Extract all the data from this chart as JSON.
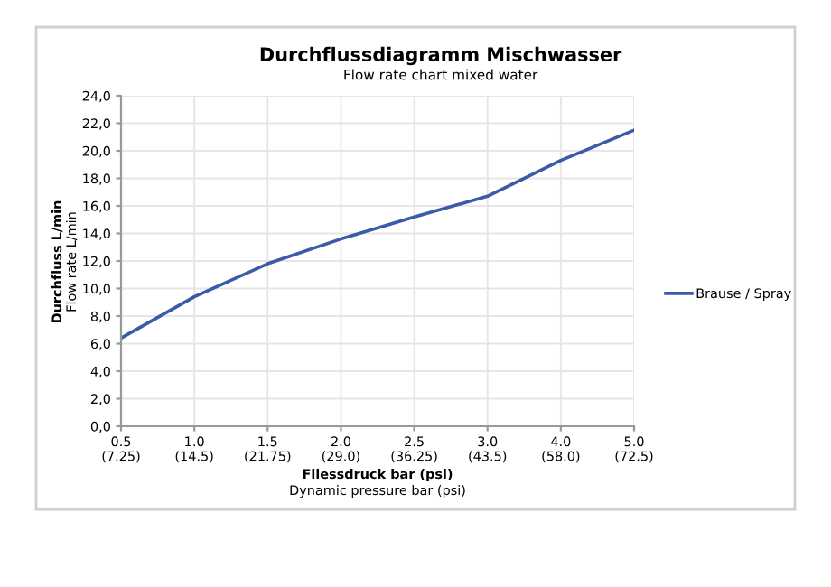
{
  "chart_data": {
    "type": "line",
    "title": "Durchflussdiagramm Mischwasser",
    "subtitle": "Flow rate chart mixed water",
    "xlabel": "Fliessdruck bar (psi)\nDynamic pressure bar (psi)",
    "ylabel": "Durchfluss L/min\nFlow rate L/min",
    "categories": [
      "0.5\n(7.25)",
      "1.0\n(14.5)",
      "1.5\n(21.75)",
      "2.0\n(29.0)",
      "2.5\n(36.25)",
      "3.0\n(43.5)",
      "4.0\n(58.0)",
      "5.0\n(72.5)"
    ],
    "series": [
      {
        "name": "Brause / Spray",
        "color": "#3a5ba8",
        "values": [
          6.4,
          9.4,
          11.8,
          13.6,
          15.2,
          16.7,
          19.3,
          21.5
        ]
      }
    ],
    "ylim": [
      0,
      24
    ],
    "yticks": [
      {
        "value": 0,
        "label": "0,0"
      },
      {
        "value": 2,
        "label": "2,0"
      },
      {
        "value": 4,
        "label": "4,0"
      },
      {
        "value": 6,
        "label": "6,0"
      },
      {
        "value": 8,
        "label": "8,0"
      },
      {
        "value": 10,
        "label": "10,0"
      },
      {
        "value": 12,
        "label": "12,0"
      },
      {
        "value": 14,
        "label": "14,0"
      },
      {
        "value": 16,
        "label": "16,0"
      },
      {
        "value": 18,
        "label": "18,0"
      },
      {
        "value": 20,
        "label": "20,0"
      },
      {
        "value": 22,
        "label": "22,0"
      },
      {
        "value": 24,
        "label": "24,0"
      }
    ],
    "grid": true,
    "legend": "right",
    "marker": "none",
    "line_style": "solid"
  }
}
